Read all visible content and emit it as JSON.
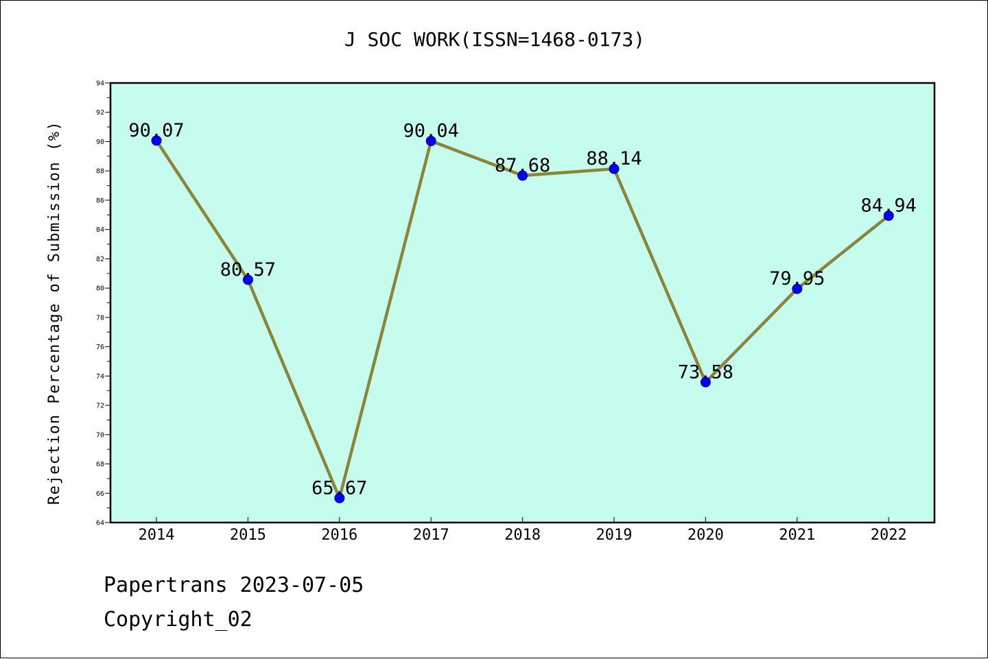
{
  "chart_data": {
    "type": "line",
    "title": "J SOC WORK(ISSN=1468-0173)",
    "xlabel": "",
    "ylabel": "Rejection Percentage of Submission (%)",
    "categories": [
      "2014",
      "2015",
      "2016",
      "2017",
      "2018",
      "2019",
      "2020",
      "2021",
      "2022"
    ],
    "series": [
      {
        "values": [
          90.07,
          80.57,
          65.67,
          90.04,
          87.68,
          88.14,
          73.58,
          79.95,
          84.94
        ],
        "labels": [
          "90.07",
          "80.57",
          "65.67",
          "90.04",
          "87.68",
          "88.14",
          "73.58",
          "79.95",
          "84.94"
        ],
        "line_color": "#8c843a",
        "marker_color": "#0000ff"
      }
    ],
    "ylim": [
      64,
      94
    ],
    "yticks": [
      "64",
      "66",
      "68",
      "70",
      "72",
      "74",
      "76",
      "78",
      "80",
      "82",
      "84",
      "86",
      "88",
      "90",
      "92",
      "94"
    ],
    "grid": false,
    "plot_background": "#c6fcee",
    "legend": "none"
  },
  "footer": {
    "line1": "Papertrans 2023-07-05",
    "line2": "Copyright_02"
  }
}
